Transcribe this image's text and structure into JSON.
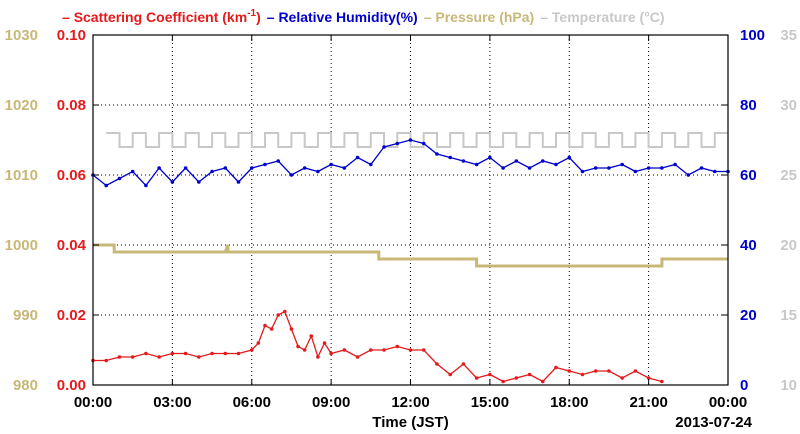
{
  "chart_data": {
    "type": "line",
    "legend": [
      {
        "label": "Scattering Coefficient (km",
        "sup": "-1",
        "close": ")",
        "color": "#e41a1c"
      },
      {
        "label": "Relative Humidity(%)",
        "color": "#0000cc"
      },
      {
        "label": "Pressure (hPa)",
        "color": "#c8b878"
      },
      {
        "label": "Temperature (°C)",
        "color": "#c8c8c8"
      }
    ],
    "xlabel": "Time (JST)",
    "date_label": "2013-07-24",
    "xlim": [
      "00:00",
      "24:00"
    ],
    "x_ticks": [
      "00:00",
      "03:00",
      "06:00",
      "09:00",
      "12:00",
      "15:00",
      "18:00",
      "21:00",
      "00:00"
    ],
    "axes": {
      "scattering": {
        "ylim": [
          0,
          0.1
        ],
        "ticks": [
          "0.00",
          "0.02",
          "0.04",
          "0.06",
          "0.08",
          "0.10"
        ],
        "color": "#e41a1c"
      },
      "pressure": {
        "ylim": [
          980,
          1030
        ],
        "ticks": [
          "980",
          "990",
          "1000",
          "1010",
          "1020",
          "1030"
        ],
        "color": "#c8b878"
      },
      "humidity": {
        "ylim": [
          0,
          100
        ],
        "ticks": [
          "0",
          "20",
          "40",
          "60",
          "80",
          "100"
        ],
        "color": "#0000cc"
      },
      "temperature": {
        "ylim": [
          10,
          35
        ],
        "ticks": [
          "10",
          "15",
          "20",
          "25",
          "30",
          "35"
        ],
        "color": "#c8c8c8"
      }
    },
    "grid": true,
    "series": [
      {
        "name": "Scattering Coefficient",
        "axis": "scattering",
        "x_hours": [
          0.0,
          0.5,
          1.0,
          1.5,
          2.0,
          2.5,
          3.0,
          3.5,
          4.0,
          4.5,
          5.0,
          5.5,
          6.0,
          6.25,
          6.5,
          6.75,
          7.0,
          7.25,
          7.5,
          7.75,
          8.0,
          8.25,
          8.5,
          8.75,
          9.0,
          9.5,
          10.0,
          10.5,
          11.0,
          11.5,
          12.0,
          12.5,
          13.0,
          13.5,
          14.0,
          14.5,
          15.0,
          15.5,
          16.0,
          16.5,
          17.0,
          17.5,
          18.0,
          18.5,
          19.0,
          19.5,
          20.0,
          20.5,
          21.0,
          21.5
        ],
        "values": [
          0.007,
          0.007,
          0.008,
          0.008,
          0.009,
          0.008,
          0.009,
          0.009,
          0.008,
          0.009,
          0.009,
          0.009,
          0.01,
          0.012,
          0.017,
          0.016,
          0.02,
          0.021,
          0.016,
          0.011,
          0.01,
          0.014,
          0.008,
          0.012,
          0.009,
          0.01,
          0.008,
          0.01,
          0.01,
          0.011,
          0.01,
          0.01,
          0.006,
          0.003,
          0.006,
          0.002,
          0.003,
          0.001,
          0.002,
          0.003,
          0.001,
          0.005,
          0.004,
          0.003,
          0.004,
          0.004,
          0.002,
          0.004,
          0.002,
          0.001
        ]
      },
      {
        "name": "Relative Humidity",
        "axis": "humidity",
        "x_hours": [
          0.0,
          0.5,
          1.0,
          1.5,
          2.0,
          2.5,
          3.0,
          3.5,
          4.0,
          4.5,
          5.0,
          5.5,
          6.0,
          6.5,
          7.0,
          7.5,
          8.0,
          8.5,
          9.0,
          9.5,
          10.0,
          10.5,
          11.0,
          11.5,
          12.0,
          12.5,
          13.0,
          13.5,
          14.0,
          14.5,
          15.0,
          15.5,
          16.0,
          16.5,
          17.0,
          17.5,
          18.0,
          18.5,
          19.0,
          19.5,
          20.0,
          20.5,
          21.0,
          21.5,
          22.0,
          22.5,
          23.0,
          23.5,
          24.0
        ],
        "values": [
          60,
          57,
          59,
          61,
          57,
          62,
          58,
          62,
          58,
          61,
          62,
          58,
          62,
          63,
          64,
          60,
          62,
          61,
          63,
          62,
          65,
          63,
          68,
          69,
          70,
          69,
          66,
          65,
          64,
          63,
          65,
          62,
          64,
          62,
          64,
          63,
          65,
          61,
          62,
          62,
          63,
          61,
          62,
          62,
          63,
          60,
          62,
          61,
          61
        ]
      },
      {
        "name": "Pressure",
        "axis": "pressure",
        "x_hours": [
          0.0,
          0.8,
          0.8,
          5.0,
          5.1,
          5.1,
          10.8,
          10.8,
          14.5,
          14.5,
          21.5,
          21.5,
          24.0
        ],
        "values": [
          1000,
          1000,
          999,
          999,
          1000,
          999,
          999,
          998,
          998,
          997,
          997,
          998,
          998
        ]
      },
      {
        "name": "Temperature",
        "axis": "temperature",
        "pattern": {
          "low": 27,
          "high": 28,
          "period_hours": 1
        },
        "xlim_hours": [
          0.5,
          24.0
        ]
      }
    ]
  }
}
